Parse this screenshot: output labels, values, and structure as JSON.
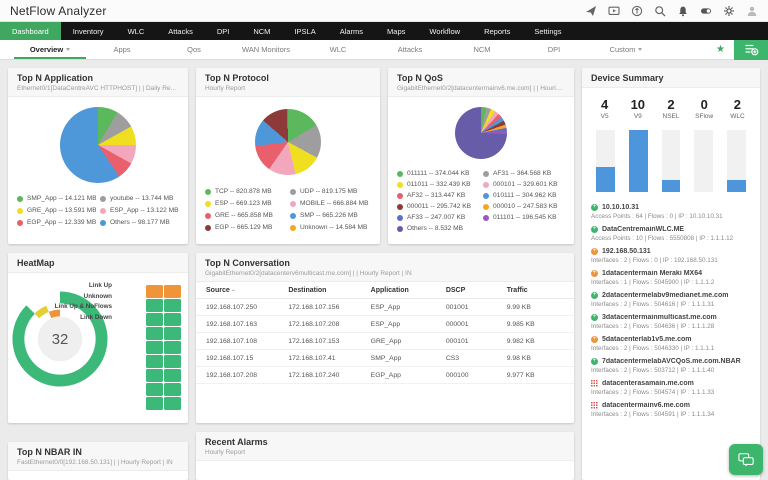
{
  "theme": {
    "accent_green": "#3fa75f",
    "nav_bg": "#151515",
    "bar_blue": "#4d96db"
  },
  "topbar": {
    "title": "NetFlow Analyzer",
    "icons": [
      "launch-icon",
      "video-demo-icon",
      "updates-icon",
      "search-icon",
      "notifications-icon",
      "org-toggle-icon",
      "settings-icon",
      "user-icon"
    ]
  },
  "nav": {
    "tabs": [
      {
        "label": "Dashboard",
        "state": "active"
      },
      {
        "label": "Inventory",
        "state": ""
      },
      {
        "label": "WLC",
        "state": ""
      },
      {
        "label": "Attacks",
        "state": ""
      },
      {
        "label": "DPI",
        "state": ""
      },
      {
        "label": "NCM",
        "state": ""
      },
      {
        "label": "IPSLA",
        "state": ""
      },
      {
        "label": "Alarms",
        "state": ""
      },
      {
        "label": "Maps",
        "state": ""
      },
      {
        "label": "Workflow",
        "state": ""
      },
      {
        "label": "Reports",
        "state": ""
      },
      {
        "label": "Settings",
        "state": ""
      }
    ]
  },
  "subnav": {
    "tabs": [
      {
        "label": "Overview",
        "state": "active has-caret"
      },
      {
        "label": "Apps",
        "state": ""
      },
      {
        "label": "Qos",
        "state": ""
      },
      {
        "label": "WAN Monitors",
        "state": ""
      },
      {
        "label": "WLC",
        "state": ""
      },
      {
        "label": "Attacks",
        "state": ""
      },
      {
        "label": "NCM",
        "state": ""
      },
      {
        "label": "DPI",
        "state": ""
      },
      {
        "label": "Custom",
        "state": "has-caret"
      }
    ]
  },
  "chart_data": {
    "application": {
      "type": "pie",
      "title": "Top N Application",
      "subtitle": "Ethernet0/1[DataCentreAVC HTTPHOST] | | Daily Report | IN",
      "items": [
        {
          "label": "SMP_App",
          "value": 14.121,
          "unit": "MB",
          "color": "#5cb85c"
        },
        {
          "label": "youtube",
          "value": 13.744,
          "unit": "MB",
          "color": "#9e9e9e"
        },
        {
          "label": "GRE_App",
          "value": 13.591,
          "unit": "MB",
          "color": "#f0df20"
        },
        {
          "label": "ESP_App",
          "value": 13.122,
          "unit": "MB",
          "color": "#f3a7bc"
        },
        {
          "label": "EGP_App",
          "value": 12.339,
          "unit": "MB",
          "color": "#e8606b"
        },
        {
          "label": "Others",
          "value": 98.177,
          "unit": "MB",
          "color": "#4e97d8"
        }
      ]
    },
    "protocol": {
      "type": "pie",
      "title": "Top N Protocol",
      "subtitle": "Hourly Report",
      "items": [
        {
          "label": "TCP",
          "value": 820.878,
          "unit": "MB",
          "color": "#5cb85c"
        },
        {
          "label": "UDP",
          "value": 819.175,
          "unit": "MB",
          "color": "#9e9e9e"
        },
        {
          "label": "ESP",
          "value": 669.123,
          "unit": "MB",
          "color": "#f0df20"
        },
        {
          "label": "MOBILE",
          "value": 666.884,
          "unit": "MB",
          "color": "#f3a7bc"
        },
        {
          "label": "GRE",
          "value": 665.858,
          "unit": "MB",
          "color": "#e8606b"
        },
        {
          "label": "SMP",
          "value": 665.226,
          "unit": "MB",
          "color": "#4e97d8"
        },
        {
          "label": "EGP",
          "value": 665.129,
          "unit": "MB",
          "color": "#8e3a3a"
        },
        {
          "label": "Unknown",
          "value": 14.584,
          "unit": "MB",
          "color": "#f5a623"
        }
      ]
    },
    "qos": {
      "type": "pie",
      "title": "Top N QoS",
      "subtitle": "GigabitEthernet0/2[datacentermainv6.me.com] | | Hourly Report ...",
      "items": [
        {
          "label": "011111",
          "value": 374.044,
          "unit": "KB",
          "color": "#5cb85c"
        },
        {
          "label": "AF31",
          "value": 364.568,
          "unit": "KB",
          "color": "#9e9e9e"
        },
        {
          "label": "011011",
          "value": 332.439,
          "unit": "KB",
          "color": "#f0df20"
        },
        {
          "label": "000101",
          "value": 329.601,
          "unit": "KB",
          "color": "#f3a7bc"
        },
        {
          "label": "AF32",
          "value": 313.447,
          "unit": "KB",
          "color": "#e8606b"
        },
        {
          "label": "010111",
          "value": 304.962,
          "unit": "KB",
          "color": "#4e97d8"
        },
        {
          "label": "000011",
          "value": 295.742,
          "unit": "KB",
          "color": "#8e3a3a"
        },
        {
          "label": "000010",
          "value": 247.583,
          "unit": "KB",
          "color": "#f5a623"
        },
        {
          "label": "AF33",
          "value": 247.007,
          "unit": "KB",
          "color": "#5f6ec9"
        },
        {
          "label": "011101",
          "value": 196.545,
          "unit": "KB",
          "color": "#9c57c5"
        },
        {
          "label": "Others",
          "value": 8.532,
          "unit": "MB",
          "color": "#675ca8"
        }
      ]
    },
    "device_bars": {
      "type": "bar",
      "bar_color": "#4d96db",
      "stats": [
        {
          "label": "V5",
          "value": 4
        },
        {
          "label": "V9",
          "value": 10
        },
        {
          "label": "NSEL",
          "value": 2
        },
        {
          "label": "SFlow",
          "value": 0
        },
        {
          "label": "WLC",
          "value": 2
        }
      ]
    },
    "heatmap_donut": {
      "type": "donut",
      "center_value": "32",
      "segments": [
        {
          "label": "Link Up",
          "value": 28,
          "color": "#3cb878"
        },
        {
          "label": "Unknown",
          "value": 2,
          "color": "#e3cf32"
        },
        {
          "label": "Link Up & NoFlows",
          "value": 2,
          "color": "#f0943a"
        },
        {
          "label": "Link Down",
          "value": 0,
          "color": "#e8606b"
        }
      ]
    },
    "heatmap_grid": {
      "type": "heatmap",
      "columns": 2,
      "cells": [
        "#f0943a",
        "#f0943a",
        "#3cb878",
        "#3cb878",
        "#3cb878",
        "#3cb878",
        "#3cb878",
        "#3cb878",
        "#3cb878",
        "#3cb878",
        "#3cb878",
        "#3cb878",
        "#3cb878",
        "#3cb878",
        "#3cb878",
        "#3cb878",
        "#3cb878",
        "#3cb878"
      ]
    }
  },
  "heatmap": {
    "title": "HeatMap"
  },
  "device_summary": {
    "title": "Device Summary",
    "devices": [
      {
        "status": "up",
        "name": "10.10.10.31",
        "meta": "Access Points : 64 | Flows : 0 | IP : 10.10.10.31"
      },
      {
        "status": "up",
        "name": "DataCentremainWLC.ME",
        "meta": "Access Points : 10 | Flows : 5550808 | IP : 1.1.1.12"
      },
      {
        "status": "warn",
        "name": "192.168.50.131",
        "meta": "Interfaces : 2 | Flows : 0 | IP : 192.168.50.131"
      },
      {
        "status": "warn",
        "name": "1datacentermain Meraki MX64",
        "meta": "Interfaces : 1 | Flows : 5045900 | IP : 1.1.1.2"
      },
      {
        "status": "up",
        "name": "2datacentermelabv9medianet.me.com",
        "meta": "Interfaces : 2 | Flows : 504616 | IP : 1.1.1.31"
      },
      {
        "status": "up",
        "name": "3datacentermainmulticast.me.com",
        "meta": "Interfaces : 2 | Flows : 504636 | IP : 1.1.1.28"
      },
      {
        "status": "warn",
        "name": "5datacenterlab1v5.me.com",
        "meta": "Interfaces : 2 | Flows : 5046330 | IP : 1.1.1.1"
      },
      {
        "status": "up",
        "name": "7datacentermelabAVCQoS.me.com.NBAR",
        "meta": "Interfaces : 2 | Flows : 503712 | IP : 1.1.1.40"
      },
      {
        "status": "down",
        "name": "datacenterasamain.me.com",
        "meta": "Interfaces : 2 | Flows : 504574 | IP : 1.1.1.33"
      },
      {
        "status": "down",
        "name": "datacentermainv6.me.com",
        "meta": "Interfaces : 2 | Flows : 504591 | IP : 1.1.1.34"
      }
    ]
  },
  "conversation": {
    "title": "Top N Conversation",
    "subtitle": "GigabitEthernet0/2[datacenterv6multicast.me.com] | | Hourly Report | IN",
    "columns": [
      {
        "label": "Source",
        "sort": "–"
      },
      {
        "label": "Destination",
        "sort": ""
      },
      {
        "label": "Application",
        "sort": ""
      },
      {
        "label": "DSCP",
        "sort": ""
      },
      {
        "label": "Traffic",
        "sort": ""
      }
    ],
    "rows": [
      {
        "source": "192.168.107.250",
        "destination": "172.168.107.156",
        "application": "ESP_App",
        "dscp": "001001",
        "traffic": "9.99 KB"
      },
      {
        "source": "192.168.107.163",
        "destination": "172.168.107.208",
        "application": "ESP_App",
        "dscp": "000001",
        "traffic": "9.985 KB"
      },
      {
        "source": "192.168.107.108",
        "destination": "172.168.107.153",
        "application": "GRE_App",
        "dscp": "000101",
        "traffic": "9.982 KB"
      },
      {
        "source": "192.168.107.15",
        "destination": "172.168.107.41",
        "application": "SMP_App",
        "dscp": "CS3",
        "traffic": "9.98 KB"
      },
      {
        "source": "192.168.107.208",
        "destination": "172.168.107.240",
        "application": "EGP_App",
        "dscp": "000100",
        "traffic": "9.977 KB"
      }
    ]
  },
  "nbar": {
    "title": "Top N NBAR IN",
    "subtitle": "FastEthernet0/0[192.168.50.131] | | Hourly Report | IN"
  },
  "alarms": {
    "title": "Recent Alarms",
    "subtitle": "Hourly Report"
  }
}
